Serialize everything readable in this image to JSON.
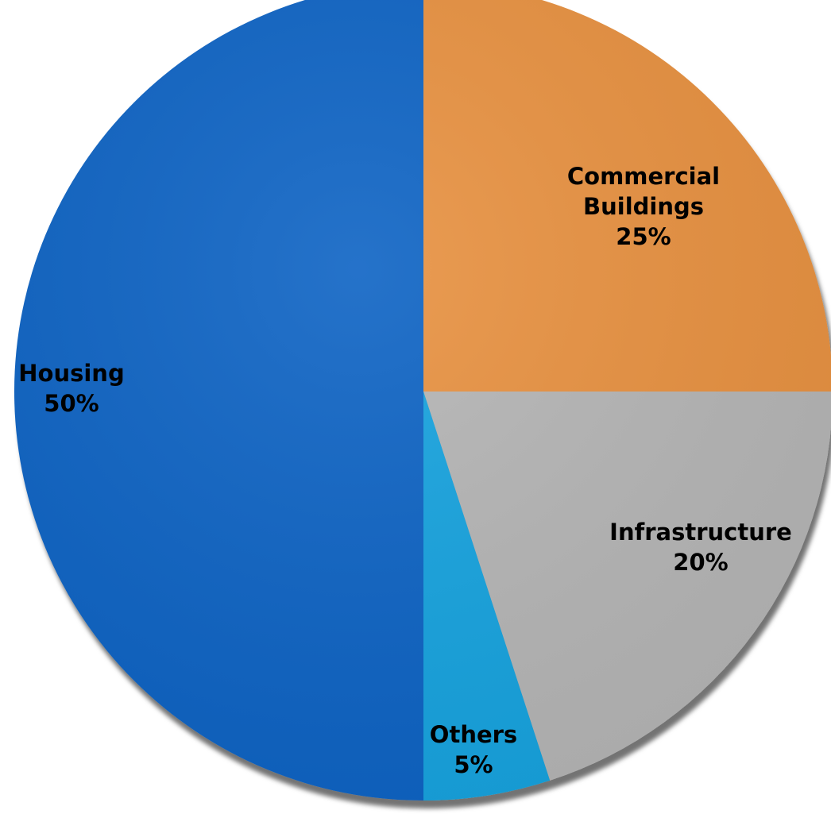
{
  "chart_data": {
    "type": "pie",
    "title": "",
    "start_angle_deg": 0,
    "direction": "clockwise",
    "slices": [
      {
        "label_lines": [
          "Commercial",
          "Buildings"
        ],
        "value": 25,
        "value_label": "25%",
        "color": "#E8913F"
      },
      {
        "label_lines": [
          "Infrastructure"
        ],
        "value": 20,
        "value_label": "20%",
        "color": "#B5B5B5"
      },
      {
        "label_lines": [
          "Others"
        ],
        "value": 5,
        "value_label": "5%",
        "color": "#12A3DF"
      },
      {
        "label_lines": [
          "Housing"
        ],
        "value": 50,
        "value_label": "50%",
        "color": "#0D64C4"
      }
    ]
  }
}
